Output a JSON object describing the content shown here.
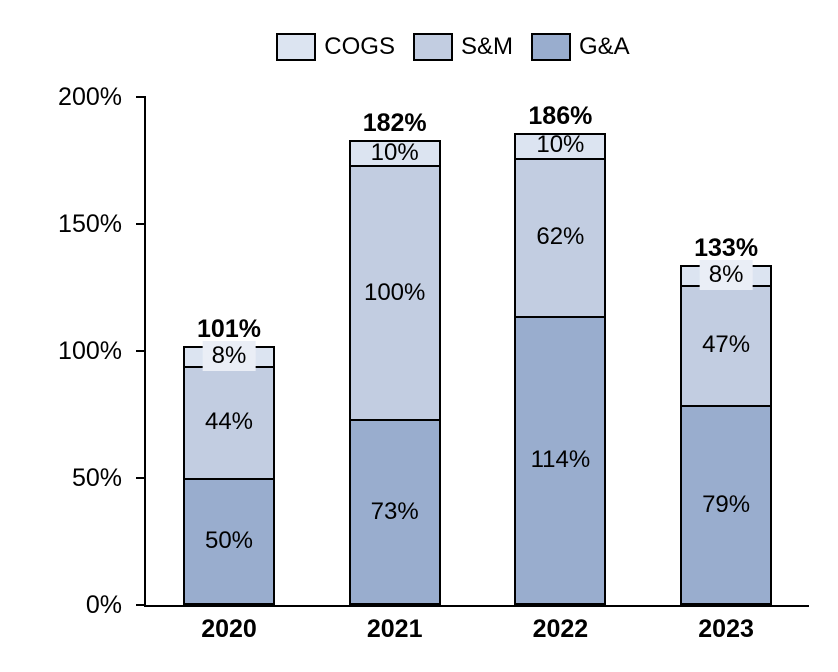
{
  "colors": {
    "cogs_fill": "#dce4f1",
    "sm_fill": "#c2cde1",
    "ga_fill": "#99adce",
    "border": "#000000",
    "small_label_bg": "#eaeef6",
    "text": "#000000"
  },
  "chart_data": {
    "type": "bar",
    "stacked": true,
    "title": "",
    "xlabel": "",
    "ylabel": "",
    "ylim": [
      0,
      200
    ],
    "grid": false,
    "legend_position": "top",
    "legend": [
      "COGS",
      "S&M",
      "G&A"
    ],
    "categories": [
      "2020",
      "2021",
      "2022",
      "2023"
    ],
    "series": [
      {
        "name": "G&A",
        "color": "#99adce",
        "values": [
          50,
          73,
          114,
          79
        ],
        "labels": [
          "50%",
          "73%",
          "114%",
          "79%"
        ]
      },
      {
        "name": "S&M",
        "color": "#c2cde1",
        "values": [
          44,
          100,
          62,
          47
        ],
        "labels": [
          "44%",
          "100%",
          "62%",
          "47%"
        ]
      },
      {
        "name": "COGS",
        "color": "#dce4f1",
        "values": [
          8,
          10,
          10,
          8
        ],
        "labels": [
          "8%",
          "10%",
          "10%",
          "8%"
        ]
      }
    ],
    "totals": [
      "101%",
      "182%",
      "186%",
      "133%"
    ],
    "y_ticks": [
      {
        "label": "0%",
        "value": 0
      },
      {
        "label": "50%",
        "value": 50
      },
      {
        "label": "100%",
        "value": 100
      },
      {
        "label": "150%",
        "value": 150
      },
      {
        "label": "200%",
        "value": 200
      }
    ]
  }
}
